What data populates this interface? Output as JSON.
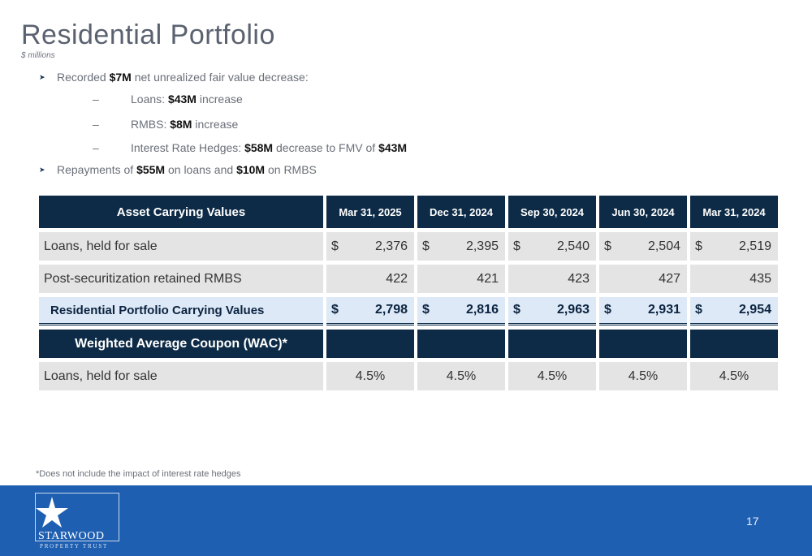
{
  "title": "Residential Portfolio",
  "subtitle": "$ millions",
  "bullets": [
    {
      "pre": "Recorded ",
      "b1": "$7M",
      "mid": " net unrealized fair value decrease:"
    },
    {
      "pre": "Loans: ",
      "b1": "$43M",
      "mid": " increase"
    },
    {
      "pre": "RMBS: ",
      "b1": "$8M",
      "mid": " increase"
    },
    {
      "pre": "Interest Rate Hedges: ",
      "b1": "$58M",
      "mid": " decrease to FMV of ",
      "b2": "$43M"
    },
    {
      "pre": "Repayments of ",
      "b1": "$55M",
      "mid": " on loans and ",
      "b2": "$10M",
      "post": " on RMBS"
    }
  ],
  "table": {
    "header": "Asset Carrying Values",
    "dates": [
      "Mar 31, 2025",
      "Dec 31, 2024",
      "Sep 30, 2024",
      "Jun 30, 2024",
      "Mar 31, 2024"
    ],
    "rows": {
      "loans": {
        "label": "Loans, held for sale",
        "values": [
          "2,376",
          "2,395",
          "2,540",
          "2,504",
          "2,519"
        ]
      },
      "rmbs": {
        "label": "Post-securitization retained RMBS",
        "values": [
          "422",
          "421",
          "423",
          "427",
          "435"
        ]
      },
      "total": {
        "label": "Residential Portfolio Carrying Values",
        "values": [
          "2,798",
          "2,816",
          "2,963",
          "2,931",
          "2,954"
        ]
      },
      "wac": {
        "label": "Weighted Average Coupon (WAC)*"
      },
      "wac_loans": {
        "label": "Loans, held for sale",
        "values": [
          "4.5%",
          "4.5%",
          "4.5%",
          "4.5%",
          "4.5%"
        ]
      }
    },
    "currency": "$"
  },
  "footnote": "*Does not include the impact of interest rate hedges",
  "logo": {
    "name": "STARWOOD",
    "sub": "PROPERTY TRUST"
  },
  "page_number": "17",
  "colors": {
    "navy": "#0d2b46",
    "band": "#1f5fb1",
    "total_fill": "#dde9f6"
  }
}
